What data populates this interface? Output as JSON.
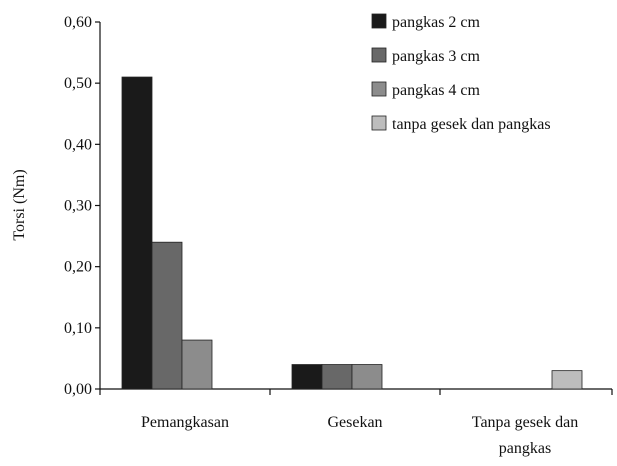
{
  "chart_data": {
    "type": "bar",
    "title": "",
    "xlabel": "",
    "ylabel": "Torsi (Nm)",
    "ylim": [
      0,
      0.6
    ],
    "yticks": [
      "0,00",
      "0,10",
      "0,20",
      "0,30",
      "0,40",
      "0,50",
      "0,60"
    ],
    "categories": [
      "Pemangkasan",
      "Gesekan",
      "Tanpa gesek dan pangkas"
    ],
    "category_label_lines": [
      [
        "Pemangkasan"
      ],
      [
        "Gesekan"
      ],
      [
        "Tanpa gesek dan",
        "pangkas"
      ]
    ],
    "series": [
      {
        "name": "pangkas 2 cm",
        "color": "#1a1a1a",
        "values": [
          0.51,
          0.04,
          0
        ]
      },
      {
        "name": "pangkas 3 cm",
        "color": "#686868",
        "values": [
          0.24,
          0.04,
          0
        ]
      },
      {
        "name": "pangkas 4 cm",
        "color": "#8c8c8c",
        "values": [
          0.08,
          0.04,
          0
        ]
      },
      {
        "name": "tanpa gesek dan pangkas",
        "color": "#bdbdbd",
        "values": [
          0,
          0,
          0.03
        ]
      }
    ],
    "grid": false,
    "legend_position": "top-right"
  }
}
